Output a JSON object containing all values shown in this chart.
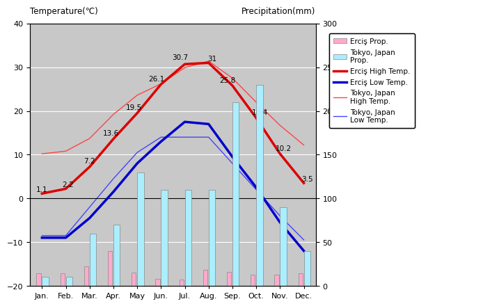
{
  "months": [
    "Jan.",
    "Feb.",
    "Mar.",
    "Apr.",
    "May",
    "Jun.",
    "Jul.",
    "Aug.",
    "Sep.",
    "Oct.",
    "Nov.",
    "Dec."
  ],
  "ercis_high_temp": [
    1.1,
    2.2,
    7.2,
    13.6,
    19.5,
    26.1,
    30.7,
    31.0,
    25.8,
    18.4,
    10.2,
    3.5
  ],
  "ercis_low_temp": [
    -9.0,
    -9.0,
    -4.5,
    1.5,
    8.0,
    13.0,
    17.5,
    17.0,
    9.5,
    2.5,
    -5.5,
    -12.0
  ],
  "tokyo_high_temp": [
    10.2,
    10.8,
    13.7,
    19.2,
    23.6,
    26.2,
    29.9,
    31.4,
    27.5,
    22.0,
    16.7,
    12.2
  ],
  "tokyo_low_temp": [
    -8.5,
    -8.5,
    -2.0,
    4.5,
    10.5,
    14.0,
    14.0,
    14.0,
    8.0,
    2.0,
    -4.0,
    -9.5
  ],
  "ercis_precip": [
    14.0,
    14.0,
    22.0,
    40.0,
    15.0,
    8.0,
    7.0,
    18.0,
    16.0,
    13.0,
    13.0,
    14.0
  ],
  "tokyo_precip": [
    10.0,
    10.0,
    60.0,
    70.0,
    130.0,
    110.0,
    110.0,
    110.0,
    210.0,
    230.0,
    90.0,
    40.0
  ],
  "temp_ylim": [
    -20,
    40
  ],
  "precip_ylim": [
    0,
    300
  ],
  "temp_yticks": [
    -20,
    -10,
    0,
    10,
    20,
    30,
    40
  ],
  "precip_yticks": [
    0,
    50,
    100,
    150,
    200,
    250,
    300
  ],
  "bg_color": "#c8c8c8",
  "ercis_high_color": "#dd0000",
  "ercis_low_color": "#0000cc",
  "tokyo_high_color": "#ff4444",
  "tokyo_low_color": "#4444ff",
  "ercis_precip_color": "#ffaacc",
  "tokyo_precip_color": "#aaeeff",
  "title_left": "Temperature(℃)",
  "title_right": "Precipitation(mm)",
  "ercis_high_labels": [
    "1.1",
    "2.2",
    "7.2",
    "13.6",
    "19.5",
    "26.1",
    "30.7",
    "31",
    "25.8",
    "18.4",
    "10.2",
    "3.5"
  ]
}
